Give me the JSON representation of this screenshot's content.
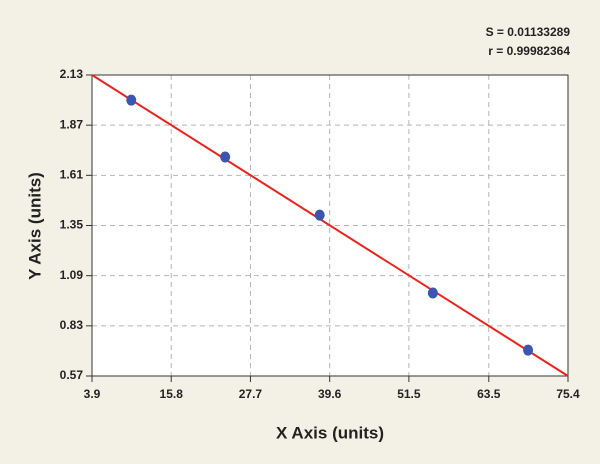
{
  "chart_data": {
    "type": "scatter",
    "annotations": [
      "S = 0.01133289",
      "r = 0.99982364"
    ],
    "xlabel": "X Axis (units)",
    "ylabel": "Y Axis (units)",
    "points": {
      "x": [
        9.8,
        23.9,
        38.1,
        55.1,
        69.4
      ],
      "y": [
        2.0,
        1.705,
        1.404,
        1.0,
        0.704
      ],
      "color": "#3b55b0"
    },
    "fit_line": {
      "x": [
        3.9,
        75.4
      ],
      "y": [
        2.13,
        0.57
      ],
      "color": "#e8231e"
    },
    "xlim": [
      3.9,
      75.4
    ],
    "xticks": [
      3.9,
      15.8,
      27.7,
      39.6,
      51.5,
      63.5,
      75.4
    ],
    "ylim": [
      0.57,
      2.13
    ],
    "yticks": [
      0.57,
      0.83,
      1.09,
      1.35,
      1.61,
      1.87,
      2.13
    ],
    "grid": true
  }
}
